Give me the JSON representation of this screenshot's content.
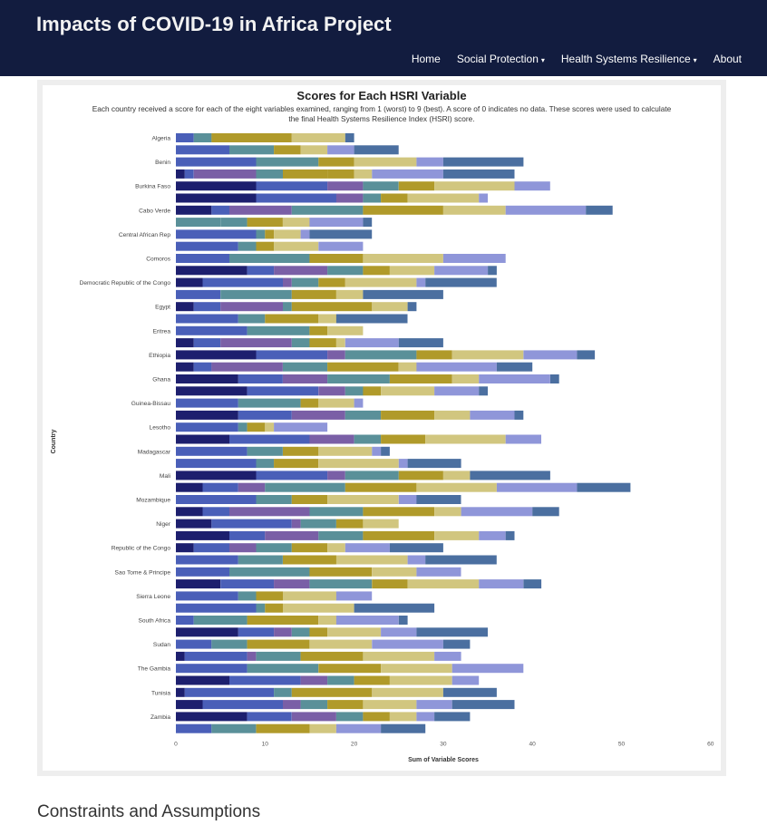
{
  "header": {
    "brand": "Impacts of COVID-19 in Africa Project",
    "nav": [
      {
        "label": "Home",
        "dropdown": false
      },
      {
        "label": "Social Protection",
        "dropdown": true
      },
      {
        "label": "Health Systems Resilience",
        "dropdown": true
      },
      {
        "label": "About",
        "dropdown": false
      }
    ],
    "caret_glyph": "▾"
  },
  "section_heading": "Constraints and Assumptions",
  "colors": {
    "navbar_bg": "#121c3f",
    "segments": [
      "#4a5fb8",
      "#5a9099",
      "#b09a2a",
      "#d1c67f",
      "#8f96d9",
      "#4b6fa0",
      "#1d1f6e",
      "#7a5fa6",
      "#3c7fa0"
    ]
  },
  "chart_data": {
    "type": "bar",
    "orientation": "horizontal",
    "stacked": true,
    "title": "Scores for Each HSRI Variable",
    "subtitle_lines": [
      "Each country received a score for each of the eight variables examined, ranging from 1 (worst) to 9 (best). A score of 0 indicates no data. These scores were used to calculate",
      "the final Health Systems Resilience Index (HSRI) score."
    ],
    "xlabel": "Sum of Variable Scores",
    "ylabel": "Country",
    "xlim": [
      0,
      60
    ],
    "xticks": [
      0,
      10,
      20,
      30,
      40,
      50,
      60
    ],
    "grid": false,
    "legend": "none",
    "categories": [
      "Algeria",
      "",
      "Benin",
      "",
      "Burkina Faso",
      "",
      "Cabo Verde",
      "",
      "Central African Rep",
      "",
      "Comoros",
      "",
      "Democratic Republic of the Congo",
      "",
      "Egypt",
      "",
      "Eritrea",
      "",
      "Ethiopia",
      "",
      "Ghana",
      "",
      "Guinea-Bissau",
      "",
      "Lesotho",
      "",
      "Madagascar",
      "",
      "Mali",
      "",
      "Mozambique",
      "",
      "Niger",
      "",
      "Republic of the Congo",
      "",
      "Sao Tome & Principe",
      "",
      "Sierra Leone",
      "",
      "South Africa",
      "",
      "Sudan",
      "",
      "The Gambia",
      "",
      "Tunisia",
      "",
      "Zambia",
      ""
    ],
    "stacks": [
      [
        [
          0,
          2
        ],
        [
          1,
          2
        ],
        [
          2,
          9
        ],
        [
          3,
          6
        ],
        [
          5,
          1
        ]
      ],
      [
        [
          0,
          6
        ],
        [
          1,
          5
        ],
        [
          2,
          3
        ],
        [
          3,
          3
        ],
        [
          4,
          3
        ],
        [
          5,
          5
        ]
      ],
      [
        [
          0,
          9
        ],
        [
          1,
          7
        ],
        [
          2,
          4
        ],
        [
          3,
          7
        ],
        [
          4,
          3
        ],
        [
          5,
          9
        ]
      ],
      [
        [
          6,
          1
        ],
        [
          0,
          1
        ],
        [
          7,
          7
        ],
        [
          1,
          3
        ],
        [
          2,
          5
        ],
        [
          2,
          3
        ],
        [
          3,
          2
        ],
        [
          4,
          8
        ],
        [
          5,
          8
        ]
      ],
      [
        [
          6,
          9
        ],
        [
          0,
          8
        ],
        [
          7,
          4
        ],
        [
          1,
          4
        ],
        [
          2,
          4
        ],
        [
          3,
          9
        ],
        [
          4,
          4
        ]
      ],
      [
        [
          6,
          9
        ],
        [
          0,
          9
        ],
        [
          7,
          3
        ],
        [
          1,
          2
        ],
        [
          2,
          3
        ],
        [
          3,
          8
        ],
        [
          4,
          1
        ]
      ],
      [
        [
          6,
          4
        ],
        [
          0,
          2
        ],
        [
          7,
          7
        ],
        [
          1,
          8
        ],
        [
          2,
          9
        ],
        [
          3,
          7
        ],
        [
          4,
          9
        ],
        [
          5,
          3
        ]
      ],
      [
        [
          1,
          5
        ],
        [
          1,
          3
        ],
        [
          2,
          4
        ],
        [
          3,
          3
        ],
        [
          4,
          6
        ],
        [
          5,
          1
        ]
      ],
      [
        [
          0,
          9
        ],
        [
          1,
          1
        ],
        [
          2,
          1
        ],
        [
          3,
          3
        ],
        [
          4,
          1
        ],
        [
          5,
          7
        ]
      ],
      [
        [
          0,
          7
        ],
        [
          1,
          2
        ],
        [
          2,
          2
        ],
        [
          3,
          5
        ],
        [
          4,
          5
        ]
      ],
      [
        [
          0,
          6
        ],
        [
          1,
          9
        ],
        [
          2,
          6
        ],
        [
          3,
          9
        ],
        [
          4,
          7
        ]
      ],
      [
        [
          6,
          8
        ],
        [
          0,
          3
        ],
        [
          7,
          6
        ],
        [
          1,
          4
        ],
        [
          2,
          3
        ],
        [
          3,
          5
        ],
        [
          4,
          6
        ],
        [
          5,
          1
        ]
      ],
      [
        [
          6,
          3
        ],
        [
          0,
          9
        ],
        [
          7,
          1
        ],
        [
          1,
          3
        ],
        [
          2,
          3
        ],
        [
          3,
          8
        ],
        [
          4,
          1
        ],
        [
          5,
          8
        ]
      ],
      [
        [
          0,
          5
        ],
        [
          1,
          8
        ],
        [
          2,
          5
        ],
        [
          3,
          3
        ],
        [
          5,
          9
        ]
      ],
      [
        [
          6,
          2
        ],
        [
          0,
          3
        ],
        [
          7,
          7
        ],
        [
          1,
          1
        ],
        [
          2,
          9
        ],
        [
          3,
          4
        ],
        [
          5,
          1
        ]
      ],
      [
        [
          0,
          7
        ],
        [
          1,
          3
        ],
        [
          2,
          6
        ],
        [
          3,
          2
        ],
        [
          5,
          8
        ]
      ],
      [
        [
          0,
          8
        ],
        [
          1,
          7
        ],
        [
          2,
          2
        ],
        [
          3,
          4
        ]
      ],
      [
        [
          6,
          2
        ],
        [
          0,
          3
        ],
        [
          7,
          8
        ],
        [
          1,
          2
        ],
        [
          2,
          3
        ],
        [
          3,
          1
        ],
        [
          4,
          6
        ],
        [
          5,
          5
        ]
      ],
      [
        [
          6,
          9
        ],
        [
          0,
          8
        ],
        [
          7,
          2
        ],
        [
          1,
          8
        ],
        [
          2,
          4
        ],
        [
          3,
          8
        ],
        [
          4,
          6
        ],
        [
          5,
          2
        ]
      ],
      [
        [
          6,
          2
        ],
        [
          0,
          2
        ],
        [
          7,
          8
        ],
        [
          1,
          5
        ],
        [
          2,
          8
        ],
        [
          3,
          2
        ],
        [
          4,
          9
        ],
        [
          5,
          4
        ]
      ],
      [
        [
          6,
          7
        ],
        [
          0,
          5
        ],
        [
          7,
          5
        ],
        [
          1,
          7
        ],
        [
          2,
          7
        ],
        [
          3,
          3
        ],
        [
          4,
          8
        ],
        [
          5,
          1
        ]
      ],
      [
        [
          6,
          8
        ],
        [
          0,
          8
        ],
        [
          7,
          3
        ],
        [
          1,
          2
        ],
        [
          2,
          2
        ],
        [
          3,
          6
        ],
        [
          4,
          5
        ],
        [
          5,
          1
        ]
      ],
      [
        [
          0,
          7
        ],
        [
          1,
          7
        ],
        [
          2,
          2
        ],
        [
          3,
          4
        ],
        [
          4,
          1
        ]
      ],
      [
        [
          6,
          7
        ],
        [
          0,
          6
        ],
        [
          7,
          6
        ],
        [
          1,
          4
        ],
        [
          2,
          6
        ],
        [
          3,
          4
        ],
        [
          4,
          5
        ],
        [
          5,
          1
        ]
      ],
      [
        [
          0,
          7
        ],
        [
          1,
          1
        ],
        [
          2,
          2
        ],
        [
          3,
          1
        ],
        [
          4,
          6
        ]
      ],
      [
        [
          6,
          6
        ],
        [
          0,
          9
        ],
        [
          7,
          5
        ],
        [
          1,
          3
        ],
        [
          2,
          5
        ],
        [
          3,
          9
        ],
        [
          4,
          4
        ]
      ],
      [
        [
          0,
          8
        ],
        [
          1,
          4
        ],
        [
          2,
          4
        ],
        [
          3,
          6
        ],
        [
          4,
          1
        ],
        [
          5,
          1
        ]
      ],
      [
        [
          0,
          9
        ],
        [
          1,
          2
        ],
        [
          2,
          5
        ],
        [
          3,
          9
        ],
        [
          4,
          1
        ],
        [
          5,
          6
        ]
      ],
      [
        [
          6,
          9
        ],
        [
          0,
          8
        ],
        [
          7,
          2
        ],
        [
          1,
          6
        ],
        [
          2,
          5
        ],
        [
          3,
          3
        ],
        [
          5,
          9
        ]
      ],
      [
        [
          6,
          3
        ],
        [
          0,
          4
        ],
        [
          7,
          3
        ],
        [
          1,
          9
        ],
        [
          2,
          8
        ],
        [
          3,
          9
        ],
        [
          4,
          9
        ],
        [
          5,
          6
        ]
      ],
      [
        [
          0,
          9
        ],
        [
          1,
          4
        ],
        [
          2,
          4
        ],
        [
          3,
          8
        ],
        [
          4,
          2
        ],
        [
          5,
          5
        ]
      ],
      [
        [
          6,
          3
        ],
        [
          0,
          3
        ],
        [
          7,
          9
        ],
        [
          1,
          6
        ],
        [
          2,
          8
        ],
        [
          3,
          3
        ],
        [
          4,
          8
        ],
        [
          5,
          3
        ]
      ],
      [
        [
          6,
          4
        ],
        [
          0,
          9
        ],
        [
          7,
          1
        ],
        [
          1,
          4
        ],
        [
          2,
          3
        ],
        [
          3,
          4
        ]
      ],
      [
        [
          6,
          6
        ],
        [
          0,
          4
        ],
        [
          7,
          6
        ],
        [
          1,
          5
        ],
        [
          2,
          8
        ],
        [
          3,
          5
        ],
        [
          4,
          3
        ],
        [
          5,
          1
        ]
      ],
      [
        [
          6,
          2
        ],
        [
          0,
          4
        ],
        [
          7,
          3
        ],
        [
          1,
          4
        ],
        [
          2,
          4
        ],
        [
          3,
          2
        ],
        [
          4,
          5
        ],
        [
          5,
          6
        ]
      ],
      [
        [
          0,
          7
        ],
        [
          1,
          5
        ],
        [
          2,
          6
        ],
        [
          3,
          8
        ],
        [
          4,
          2
        ],
        [
          5,
          8
        ]
      ],
      [
        [
          0,
          6
        ],
        [
          1,
          9
        ],
        [
          2,
          7
        ],
        [
          3,
          5
        ],
        [
          4,
          5
        ]
      ],
      [
        [
          6,
          5
        ],
        [
          0,
          6
        ],
        [
          7,
          4
        ],
        [
          1,
          7
        ],
        [
          2,
          4
        ],
        [
          3,
          8
        ],
        [
          4,
          5
        ],
        [
          5,
          2
        ]
      ],
      [
        [
          0,
          7
        ],
        [
          1,
          2
        ],
        [
          2,
          3
        ],
        [
          3,
          6
        ],
        [
          4,
          4
        ]
      ],
      [
        [
          0,
          9
        ],
        [
          1,
          1
        ],
        [
          2,
          2
        ],
        [
          3,
          8
        ],
        [
          5,
          9
        ]
      ],
      [
        [
          0,
          2
        ],
        [
          1,
          6
        ],
        [
          2,
          8
        ],
        [
          3,
          2
        ],
        [
          4,
          7
        ],
        [
          5,
          1
        ]
      ],
      [
        [
          6,
          7
        ],
        [
          0,
          4
        ],
        [
          7,
          2
        ],
        [
          1,
          2
        ],
        [
          2,
          2
        ],
        [
          3,
          6
        ],
        [
          4,
          4
        ],
        [
          5,
          8
        ]
      ],
      [
        [
          0,
          4
        ],
        [
          1,
          4
        ],
        [
          2,
          7
        ],
        [
          3,
          7
        ],
        [
          4,
          8
        ],
        [
          5,
          3
        ]
      ],
      [
        [
          6,
          1
        ],
        [
          0,
          7
        ],
        [
          7,
          1
        ],
        [
          1,
          5
        ],
        [
          2,
          7
        ],
        [
          3,
          8
        ],
        [
          4,
          3
        ]
      ],
      [
        [
          0,
          8
        ],
        [
          1,
          8
        ],
        [
          2,
          7
        ],
        [
          3,
          8
        ],
        [
          4,
          8
        ]
      ],
      [
        [
          6,
          6
        ],
        [
          0,
          8
        ],
        [
          7,
          3
        ],
        [
          1,
          3
        ],
        [
          2,
          4
        ],
        [
          3,
          7
        ],
        [
          4,
          3
        ]
      ],
      [
        [
          6,
          1
        ],
        [
          0,
          10
        ],
        [
          1,
          2
        ],
        [
          2,
          9
        ],
        [
          3,
          8
        ],
        [
          5,
          6
        ]
      ],
      [
        [
          6,
          3
        ],
        [
          0,
          9
        ],
        [
          7,
          2
        ],
        [
          1,
          3
        ],
        [
          2,
          4
        ],
        [
          3,
          6
        ],
        [
          4,
          4
        ],
        [
          5,
          7
        ]
      ],
      [
        [
          6,
          8
        ],
        [
          0,
          5
        ],
        [
          7,
          5
        ],
        [
          1,
          3
        ],
        [
          2,
          3
        ],
        [
          3,
          3
        ],
        [
          4,
          2
        ],
        [
          5,
          4
        ]
      ],
      [
        [
          0,
          4
        ],
        [
          1,
          5
        ],
        [
          2,
          6
        ],
        [
          3,
          3
        ],
        [
          4,
          5
        ],
        [
          5,
          5
        ]
      ]
    ]
  }
}
